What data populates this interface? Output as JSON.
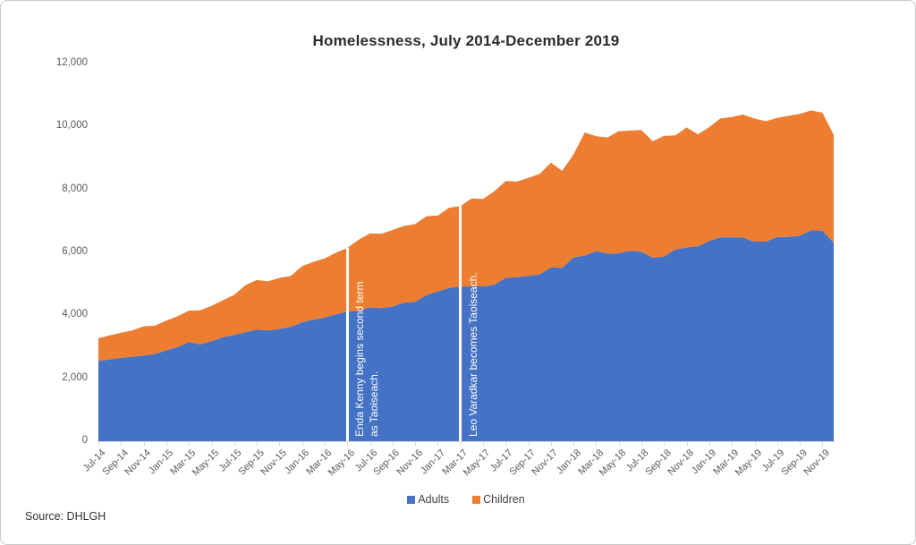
{
  "page": {
    "background": "#ffffff",
    "border_color": "#c9c9c9"
  },
  "source_note": "Source: DHLGH",
  "chart_data": {
    "type": "area",
    "stacked": true,
    "title": "Homelessness, July 2014-December 2019",
    "xlabel": "",
    "ylabel": "",
    "ylim": [
      0,
      12000
    ],
    "grid": false,
    "legend_position": "bottom",
    "axis_text_color": "#595959",
    "x": [
      "Jul-14",
      "Aug-14",
      "Sep-14",
      "Oct-14",
      "Nov-14",
      "Dec-14",
      "Jan-15",
      "Feb-15",
      "Mar-15",
      "Apr-15",
      "May-15",
      "Jun-15",
      "Jul-15",
      "Aug-15",
      "Sep-15",
      "Oct-15",
      "Nov-15",
      "Dec-15",
      "Jan-16",
      "Feb-16",
      "Mar-16",
      "Apr-16",
      "May-16",
      "Jun-16",
      "Jul-16",
      "Aug-16",
      "Sep-16",
      "Oct-16",
      "Nov-16",
      "Dec-16",
      "Jan-17",
      "Feb-17",
      "Mar-17",
      "Apr-17",
      "May-17",
      "Jun-17",
      "Jul-17",
      "Aug-17",
      "Sep-17",
      "Oct-17",
      "Nov-17",
      "Dec-17",
      "Jan-18",
      "Feb-18",
      "Mar-18",
      "Apr-18",
      "May-18",
      "Jun-18",
      "Jul-18",
      "Aug-18",
      "Sep-18",
      "Oct-18",
      "Nov-18",
      "Dec-18",
      "Jan-19",
      "Feb-19",
      "Mar-19",
      "Apr-19",
      "May-19",
      "Jun-19",
      "Jul-19",
      "Aug-19",
      "Sep-19",
      "Oct-19",
      "Nov-19",
      "Dec-19"
    ],
    "x_tick_step": 2,
    "y_ticks": [
      {
        "value": 0,
        "label": "0"
      },
      {
        "value": 2000,
        "label": "2,000"
      },
      {
        "value": 4000,
        "label": "4,000"
      },
      {
        "value": 6000,
        "label": "6,000"
      },
      {
        "value": 8000,
        "label": "8,000"
      },
      {
        "value": 10000,
        "label": "10,000"
      },
      {
        "value": 12000,
        "label": "12,000"
      }
    ],
    "series": [
      {
        "name": "Adults",
        "color": "#4472C4",
        "values": [
          2550,
          2600,
          2650,
          2680,
          2720,
          2770,
          2890,
          2990,
          3150,
          3080,
          3180,
          3300,
          3380,
          3460,
          3550,
          3520,
          3570,
          3630,
          3780,
          3860,
          3930,
          4030,
          4120,
          4150,
          4250,
          4230,
          4280,
          4400,
          4430,
          4640,
          4760,
          4870,
          4910,
          4920,
          4920,
          4970,
          5190,
          5210,
          5250,
          5300,
          5520,
          5510,
          5840,
          5900,
          6040,
          5960,
          5970,
          6050,
          6020,
          5830,
          5870,
          6090,
          6160,
          6190,
          6360,
          6480,
          6480,
          6470,
          6340,
          6340,
          6490,
          6490,
          6530,
          6700,
          6690,
          6310
        ]
      },
      {
        "name": "Children",
        "color": "#ED7D31",
        "values": [
          720,
          760,
          800,
          840,
          930,
          900,
          940,
          980,
          1000,
          1080,
          1120,
          1180,
          1270,
          1500,
          1570,
          1560,
          1620,
          1620,
          1780,
          1840,
          1880,
          1960,
          2020,
          2250,
          2350,
          2360,
          2430,
          2440,
          2470,
          2510,
          2410,
          2550,
          2560,
          2790,
          2780,
          2970,
          3080,
          3040,
          3120,
          3190,
          3330,
          3080,
          3270,
          3910,
          3650,
          3690,
          3880,
          3820,
          3870,
          3700,
          3830,
          3630,
          3810,
          3560,
          3620,
          3780,
          3820,
          3910,
          3910,
          3830,
          3780,
          3850,
          3870,
          3810,
          3750,
          3420
        ]
      }
    ],
    "annotations": [
      {
        "text": "Enda Kenny begins second term\nas Taoiseach.",
        "x_index": 22,
        "x_label": "May-16",
        "line_color": "#ffffff",
        "text_color": "#ffffff"
      },
      {
        "text": "Leo Varadkar becomes Taoiseach.",
        "x_index": 32,
        "x_label": "Mar-17",
        "line_color": "#ffffff",
        "text_color": "#ffffff"
      }
    ]
  }
}
